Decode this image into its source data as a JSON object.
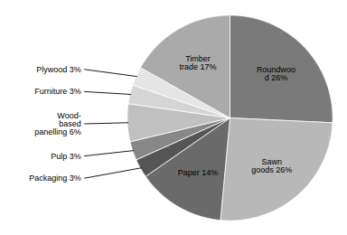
{
  "chart_data": {
    "type": "pie",
    "categories": [
      "Roundwoo\nd 26%",
      "Sawn\ngoods 26%",
      "Paper 14%",
      "Packaging 3%",
      "Pulp 3%",
      "Wood-\nbased\npanelling 6%",
      "Furniture 3%",
      "Plywood 3%",
      "Timber\ntrade 17%"
    ],
    "values": [
      26,
      26,
      14,
      3,
      3,
      6,
      3,
      3,
      17
    ],
    "colors": [
      "#7a7a7a",
      "#b8b8b8",
      "#6a6a6a",
      "#555555",
      "#888888",
      "#c0c0c0",
      "#d5d5d5",
      "#e5e5e5",
      "#aaaaaa"
    ]
  }
}
